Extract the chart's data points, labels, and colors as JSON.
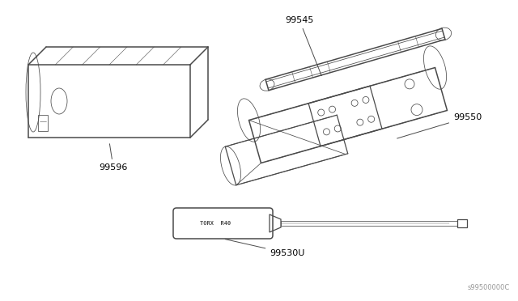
{
  "bg_color": "#ffffff",
  "line_color": "#4a4a4a",
  "label_color": "#000000",
  "fig_width": 6.4,
  "fig_height": 3.72,
  "dpi": 100,
  "watermark": "s99500000C"
}
